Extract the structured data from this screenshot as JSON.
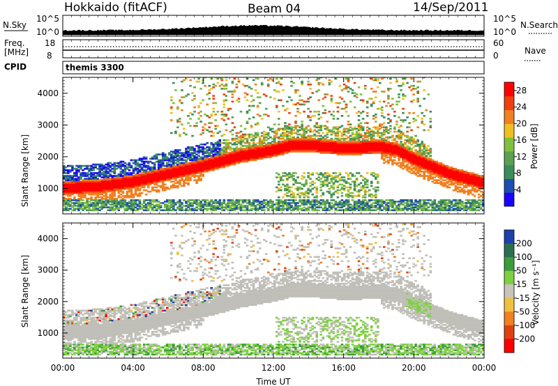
{
  "header": {
    "radar": "Hokkaido (fitACF)",
    "beam": "Beam 04",
    "date": "14/Sep/2011"
  },
  "top_panels": {
    "nsky_label": "N.Sky",
    "nsky_ticks": [
      "10^5",
      "10^0"
    ],
    "nsearch_label": "N.Search",
    "nsearch_ticks": [
      "10^5",
      "10^0"
    ],
    "freq_label_1": "Freq.",
    "freq_label_2": "[MHz]",
    "freq_ticks": [
      "18",
      "8"
    ],
    "nave_label": "Nave",
    "nave_ticks": [
      "60",
      "0"
    ],
    "cpid_label": "CPID",
    "cpid_value": "themis 3300"
  },
  "colors": {
    "power_scale": [
      "#1a00ff",
      "#1e4fb0",
      "#3c8c5a",
      "#5aa050",
      "#80c040",
      "#f0c020",
      "#f08020",
      "#f04010",
      "#ff0000"
    ],
    "velocity_scale": [
      "#1e3fb0",
      "#2a7050",
      "#3c9c3c",
      "#7ed040",
      "#c8c4bc",
      "#f0c040",
      "#f08020",
      "#e04010",
      "#ff0000"
    ],
    "ground_scatter": "#c0bfb8"
  },
  "chart_data": [
    {
      "type": "heatmap",
      "panel": "power",
      "ylabel": "Slant Range [km]",
      "y_ticks": [
        "1000",
        "2000",
        "3000",
        "4000"
      ],
      "ylim": [
        200,
        4500
      ],
      "x_ticks": [
        "00:00",
        "04:00",
        "08:00",
        "12:00",
        "16:00",
        "20:00",
        "00:00"
      ],
      "colorbar": {
        "label": "Power [dB]",
        "ticks": [
          "4",
          "8",
          "12",
          "16",
          "20",
          "24",
          "28"
        ],
        "range": [
          0,
          30
        ]
      },
      "main_echo_band": {
        "time_h": [
          0,
          2,
          4,
          6,
          8,
          10,
          12,
          13,
          14,
          16,
          18,
          19,
          20,
          22,
          24
        ],
        "range_km": [
          1000,
          1050,
          1200,
          1450,
          1700,
          2000,
          2200,
          2350,
          2350,
          2250,
          2300,
          2200,
          1900,
          1450,
          1150
        ]
      }
    },
    {
      "type": "heatmap",
      "panel": "velocity",
      "ylabel": "Slant Range [km]",
      "y_ticks": [
        "1000",
        "2000",
        "3000",
        "4000"
      ],
      "ylim": [
        200,
        4500
      ],
      "x_ticks": [
        "00:00",
        "04:00",
        "08:00",
        "12:00",
        "16:00",
        "20:00",
        "00:00"
      ],
      "xlabel": "Time UT",
      "colorbar": {
        "label": "Velocity [m s⁻¹]",
        "ticks": [
          "200",
          "100",
          "50",
          "15",
          "-15",
          "-50",
          "-100",
          "-200"
        ],
        "range": [
          -250,
          250
        ]
      }
    }
  ]
}
